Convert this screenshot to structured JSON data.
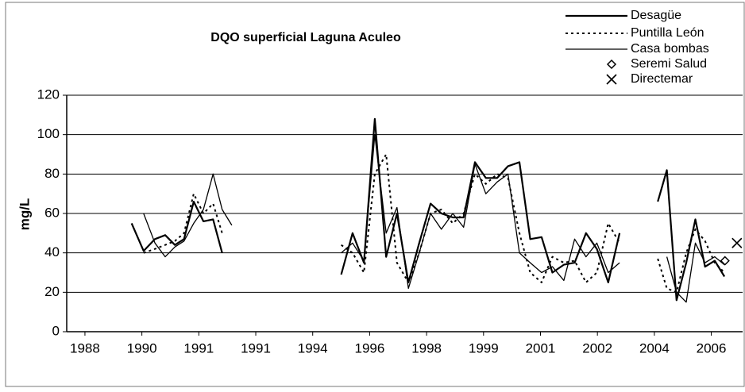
{
  "chart_data": {
    "type": "line",
    "title": "DQO superficial Laguna Aculeo",
    "y_label": "mg/L",
    "ylim": [
      0,
      120
    ],
    "yticks": [
      0,
      20,
      40,
      60,
      80,
      100,
      120
    ],
    "xlim": [
      -0.32,
      11.55
    ],
    "xticks": [
      {
        "value": 0,
        "label": "1988"
      },
      {
        "value": 1,
        "label": "1990"
      },
      {
        "value": 2,
        "label": "1991"
      },
      {
        "value": 3,
        "label": "1991"
      },
      {
        "value": 4,
        "label": "1994"
      },
      {
        "value": 5,
        "label": "1996"
      },
      {
        "value": 6,
        "label": "1998"
      },
      {
        "value": 7,
        "label": "1999"
      },
      {
        "value": 8,
        "label": "2001"
      },
      {
        "value": 9,
        "label": "2002"
      },
      {
        "value": 10,
        "label": "2004"
      },
      {
        "value": 11,
        "label": "2006"
      }
    ],
    "grid": true,
    "legend": "top-right",
    "x": [
      0.82,
      1.03,
      1.23,
      1.41,
      1.58,
      1.74,
      1.91,
      2.08,
      2.25,
      2.41,
      2.58,
      3.5,
      4.5,
      4.7,
      4.9,
      5.09,
      5.29,
      5.48,
      5.68,
      5.87,
      6.07,
      6.26,
      6.46,
      6.65,
      6.85,
      7.04,
      7.24,
      7.43,
      7.63,
      7.82,
      8.02,
      8.21,
      8.41,
      8.6,
      8.8,
      8.99,
      9.19,
      9.39,
      9.8,
      10.06,
      10.22,
      10.39,
      10.56,
      10.72,
      10.89,
      11.06,
      11.23
    ],
    "series": [
      {
        "name": "Desagüe",
        "color": "#000000",
        "style": "solid-thick",
        "values": [
          55,
          41,
          47,
          49,
          44,
          47,
          66,
          56,
          57,
          40,
          null,
          null,
          29,
          50,
          35,
          108,
          38,
          60,
          25,
          45,
          65,
          60,
          58,
          58,
          86,
          78,
          78,
          84,
          86,
          47,
          48,
          30,
          34,
          35,
          50,
          42,
          25,
          50,
          null,
          66,
          82,
          16,
          35,
          57,
          33,
          36,
          28
        ]
      },
      {
        "name": "Puntilla León",
        "color": "#000000",
        "style": "dotted",
        "values": [
          null,
          40,
          42,
          44,
          46,
          50,
          70,
          60,
          65,
          50,
          null,
          null,
          44,
          40,
          30,
          80,
          90,
          35,
          25,
          40,
          60,
          62,
          55,
          60,
          80,
          75,
          80,
          78,
          50,
          30,
          25,
          38,
          35,
          36,
          25,
          30,
          55,
          45,
          null,
          37,
          22,
          20,
          40,
          52,
          46,
          35,
          30
        ]
      },
      {
        "name": "Casa bombas",
        "color": "#000000",
        "style": "solid-thin",
        "values": [
          null,
          60,
          45,
          38,
          43,
          46,
          55,
          62,
          80,
          62,
          54,
          null,
          40,
          45,
          36,
          100,
          50,
          63,
          22,
          40,
          60,
          52,
          60,
          53,
          85,
          70,
          76,
          80,
          40,
          35,
          30,
          33,
          26,
          47,
          38,
          45,
          30,
          35,
          null,
          null,
          38,
          20,
          15,
          45,
          35,
          38,
          34
        ]
      },
      {
        "name": "Seremi Salud",
        "color": "#000000",
        "marker": "diamond",
        "x": [
          11.24
        ],
        "values": [
          36
        ]
      },
      {
        "name": "Directemar",
        "color": "#000000",
        "marker": "cross",
        "x": [
          11.45
        ],
        "values": [
          45
        ]
      }
    ]
  }
}
